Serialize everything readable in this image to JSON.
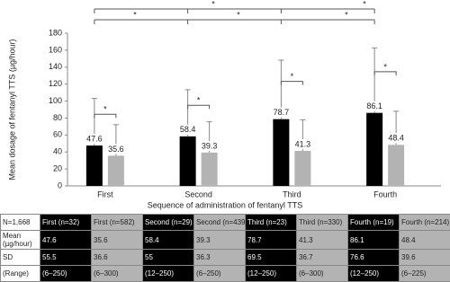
{
  "chart_data": {
    "type": "bar",
    "y_label": "Mean dosage of fentanyl TTS (µg/hour)",
    "x_label": "Sequence of administration of fentanyl TTS",
    "categories": [
      "First",
      "Second",
      "Third",
      "Fourth"
    ],
    "series": [
      {
        "color": "#000000",
        "values": [
          47.6,
          58.4,
          78.7,
          86.1
        ],
        "errors": [
          55.5,
          55,
          69.5,
          76.6
        ],
        "ranges": [
          "(6–250)",
          "(12–250)",
          "(12–250)",
          "(12–250)"
        ]
      },
      {
        "color": "#b3b3b3",
        "values": [
          35.6,
          39.3,
          41.3,
          48.4
        ],
        "errors": [
          36.6,
          36.3,
          36.7,
          39.6
        ],
        "ranges": [
          "(6–300)",
          "(6–250)",
          "(6–300)",
          "(6–225)"
        ]
      }
    ],
    "ylim": [
      0,
      180
    ],
    "yticks": [
      0,
      20,
      40,
      60,
      80,
      100,
      120,
      140,
      160,
      180
    ],
    "annotations": [
      "*",
      "*",
      "*",
      "*",
      "*",
      "*",
      "*",
      "*",
      "*"
    ],
    "table": {
      "corner": "N=1,668",
      "header": [
        "First (n=32)",
        "First (n=582)",
        "Second (n=29)",
        "Second (n=439)",
        "Third (n=23)",
        "Third (n=330)",
        "Fourth (n=19)",
        "Fourth (n=214)"
      ],
      "row_labels": [
        "Mean (µg/hour)",
        "SD",
        "(Range)"
      ]
    }
  }
}
